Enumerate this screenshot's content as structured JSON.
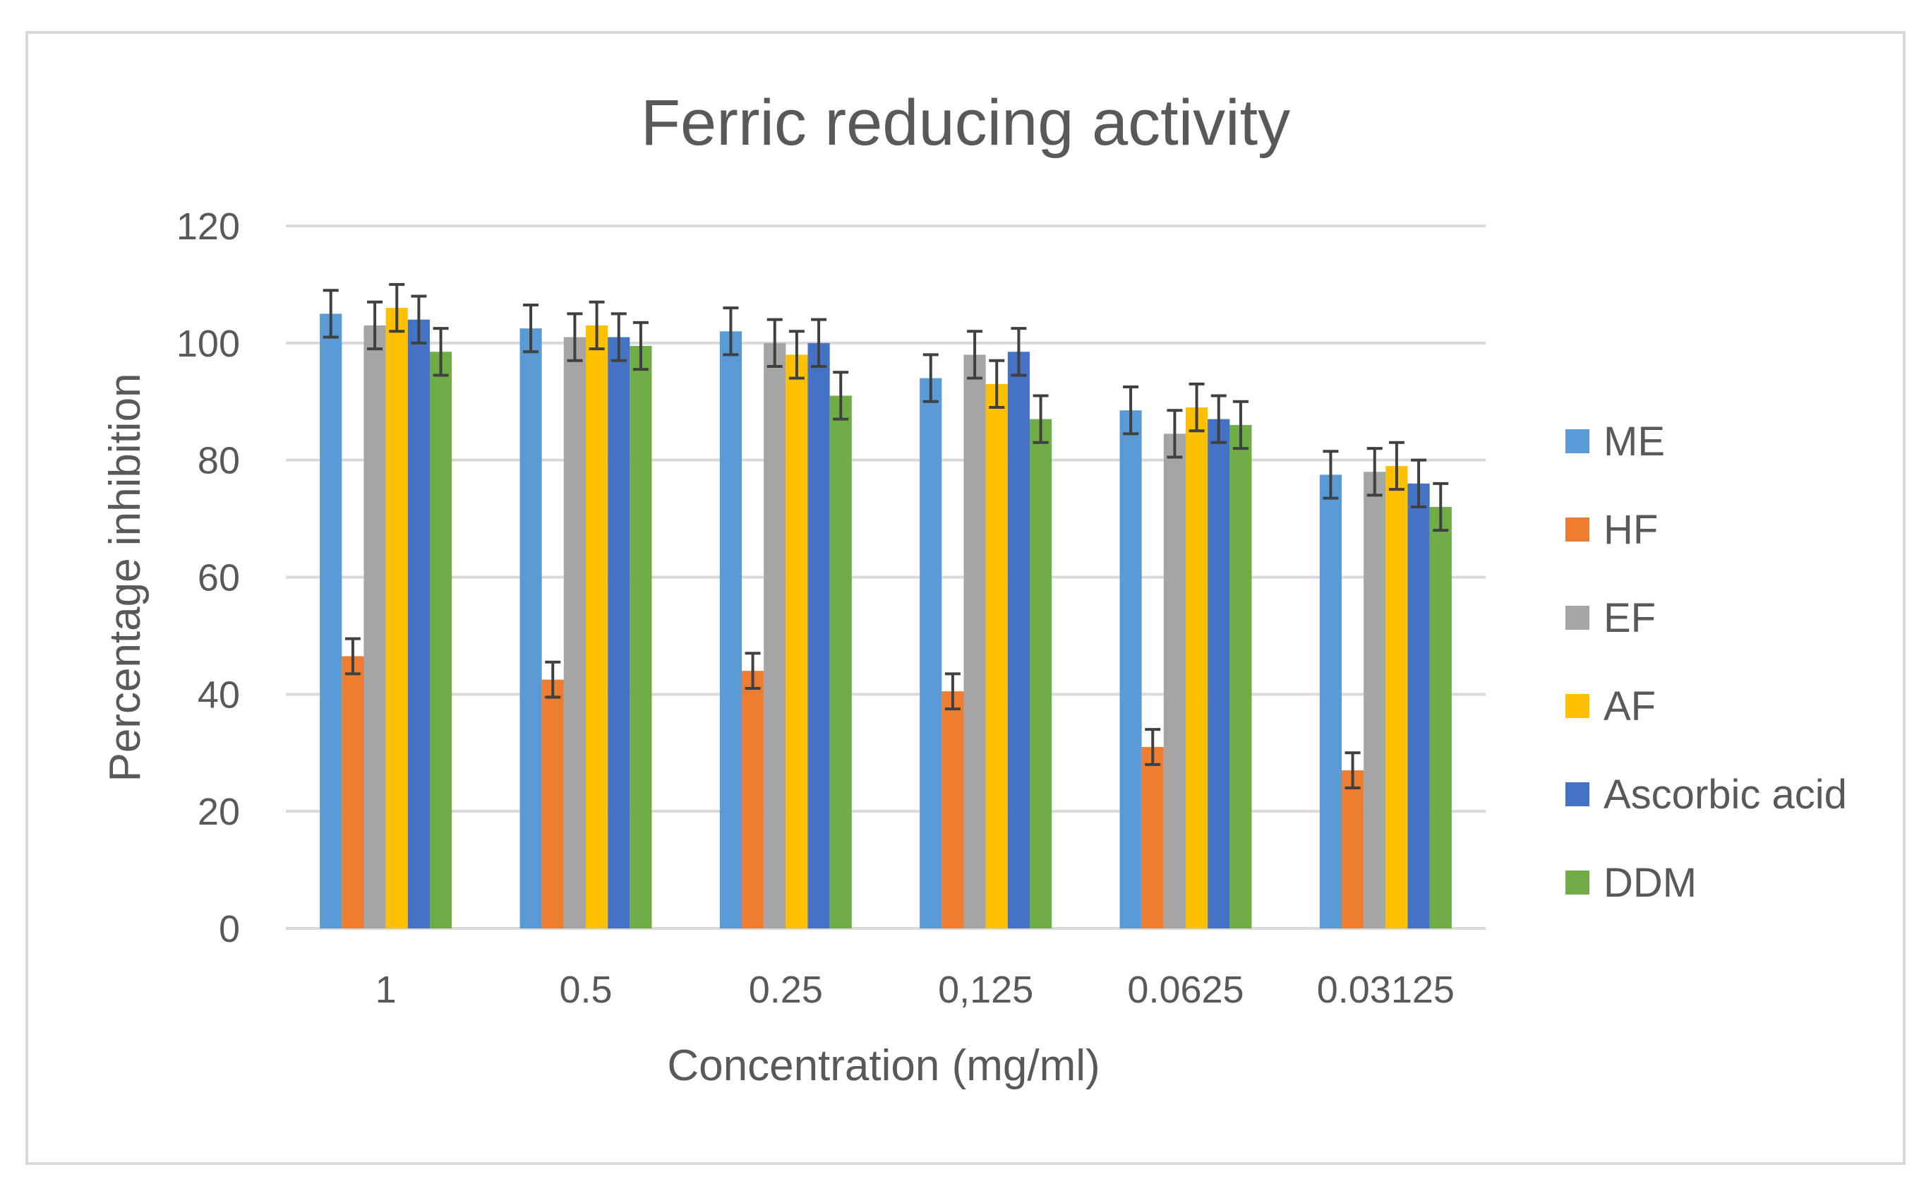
{
  "chart_data": {
    "type": "bar",
    "title": "Ferric reducing activity",
    "xlabel": "Concentration (mg/ml)",
    "ylabel": "Percentage inhibition",
    "ylim": [
      0,
      120
    ],
    "yticks": [
      0,
      20,
      40,
      60,
      80,
      100,
      120
    ],
    "grid": true,
    "legend_position": "right",
    "error_bars": true,
    "categories": [
      "1",
      "0.5",
      "0.25",
      "0,125",
      "0.0625",
      "0.03125"
    ],
    "series": [
      {
        "name": "ME",
        "color": "#5b9bd5",
        "values": [
          105,
          102.5,
          102,
          94,
          88.5,
          77.5
        ],
        "errors": [
          4,
          4,
          4,
          4,
          4,
          4
        ]
      },
      {
        "name": "HF",
        "color": "#ed7d31",
        "values": [
          46.5,
          42.5,
          44,
          40.5,
          31,
          27
        ],
        "errors": [
          3,
          3,
          3,
          3,
          3,
          3
        ]
      },
      {
        "name": "EF",
        "color": "#a5a5a5",
        "values": [
          103,
          101,
          100,
          98,
          84.5,
          78
        ],
        "errors": [
          4,
          4,
          4,
          4,
          4,
          4
        ]
      },
      {
        "name": "AF",
        "color": "#ffc000",
        "values": [
          106,
          103,
          98,
          93,
          89,
          79
        ],
        "errors": [
          4,
          4,
          4,
          4,
          4,
          4
        ]
      },
      {
        "name": "Ascorbic acid",
        "color": "#4472c4",
        "values": [
          104,
          101,
          100,
          98.5,
          87,
          76
        ],
        "errors": [
          4,
          4,
          4,
          4,
          4,
          4
        ]
      },
      {
        "name": "DDM",
        "color": "#70ad47",
        "values": [
          98.5,
          99.5,
          91,
          87,
          86,
          72
        ],
        "errors": [
          4,
          4,
          4,
          4,
          4,
          4
        ]
      }
    ]
  }
}
